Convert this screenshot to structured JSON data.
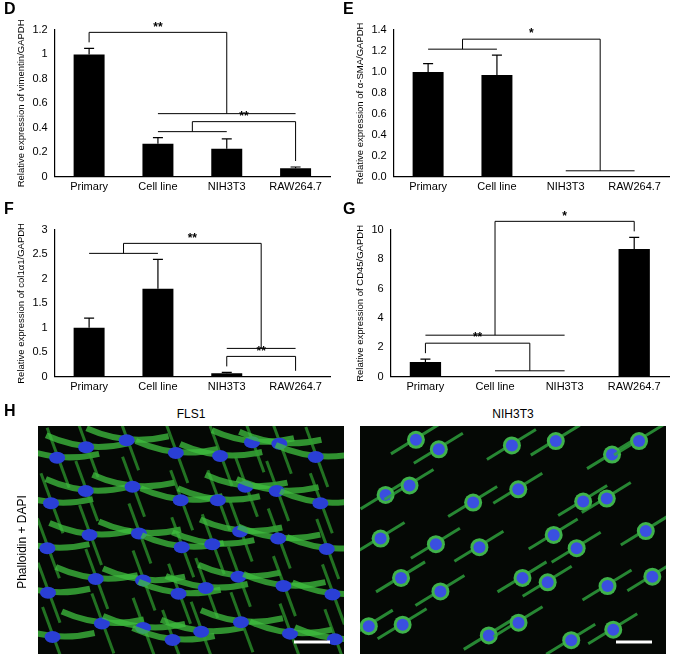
{
  "chart_data": [
    {
      "panel": "D",
      "type": "bar",
      "y_label": "Relative expression of vimentin/GAPDH",
      "categories": [
        "Primary",
        "Cell line",
        "NIH3T3",
        "RAW264.7"
      ],
      "values": [
        1.0,
        0.27,
        0.23,
        0.07
      ],
      "errors": [
        0.05,
        0.05,
        0.08,
        0.01
      ],
      "color": "#000000",
      "ylim": [
        0,
        1.2
      ],
      "yticks": [
        0,
        0.2,
        0.4,
        0.6,
        0.8,
        1,
        1.2
      ],
      "grid": false,
      "significance": [
        {
          "from": [
            "Cell line",
            "NIH3T3"
          ],
          "to": [
            "RAW264.7"
          ],
          "label": "**"
        },
        {
          "from": [
            "Primary"
          ],
          "to": [
            "Cell line",
            "NIH3T3",
            "RAW264.7"
          ],
          "label": "**"
        }
      ]
    },
    {
      "panel": "E",
      "type": "bar",
      "y_label": "Relative expression of α-SMA/GAPDH",
      "categories": [
        "Primary",
        "Cell line",
        "NIH3T3",
        "RAW264.7"
      ],
      "values": [
        1.0,
        0.97,
        0,
        0
      ],
      "errors": [
        0.08,
        0.19,
        0,
        0
      ],
      "color": "#000000",
      "ylim": [
        0,
        1.4
      ],
      "yticks": [
        {
          "value": 0,
          "label": "0.0"
        },
        0.2,
        0.4,
        0.6,
        0.8,
        {
          "value": 1,
          "label": "1.0"
        },
        1.2,
        1.4
      ],
      "grid": false,
      "significance": [
        {
          "from": [
            "Primary",
            "Cell line"
          ],
          "to": [
            "NIH3T3",
            "RAW264.7"
          ],
          "label": "*"
        }
      ]
    },
    {
      "panel": "F",
      "type": "bar",
      "y_label": "Relative expression of col1α1/GAPDH",
      "categories": [
        "Primary",
        "Cell line",
        "NIH3T3",
        "RAW264.7"
      ],
      "values": [
        1.0,
        1.8,
        0.07,
        0
      ],
      "errors": [
        0.2,
        0.6,
        0.02,
        0
      ],
      "color": "#000000",
      "ylim": [
        0,
        3
      ],
      "yticks": [
        0,
        0.5,
        1,
        1.5,
        2,
        2.5,
        3
      ],
      "grid": false,
      "significance": [
        {
          "from": [
            "NIH3T3"
          ],
          "to": [
            "RAW264.7"
          ],
          "label": "**"
        },
        {
          "from": [
            "Primary",
            "Cell line"
          ],
          "to": [
            "NIH3T3",
            "RAW264.7"
          ],
          "label": "**"
        }
      ]
    },
    {
      "panel": "G",
      "type": "bar",
      "y_label": "Relative expression of CD45/GAPDH",
      "categories": [
        "Primary",
        "Cell line",
        "NIH3T3",
        "RAW264.7"
      ],
      "values": [
        1.0,
        0,
        0,
        8.7
      ],
      "errors": [
        0.2,
        0,
        0,
        0.8
      ],
      "color": "#000000",
      "ylim": [
        0,
        10
      ],
      "yticks": [
        0,
        2,
        4,
        6,
        8,
        10
      ],
      "grid": false,
      "significance": [
        {
          "from": [
            "Primary"
          ],
          "to": [
            "Cell line",
            "NIH3T3"
          ],
          "label": "**"
        },
        {
          "from": [
            "Primary",
            "Cell line",
            "NIH3T3"
          ],
          "to": [
            "RAW264.7"
          ],
          "label": "*"
        }
      ]
    }
  ],
  "image_panel": {
    "panel": "H",
    "stain_label": "Phalloidin + DAPI",
    "images": [
      "FLS1",
      "NIH3T3"
    ]
  }
}
